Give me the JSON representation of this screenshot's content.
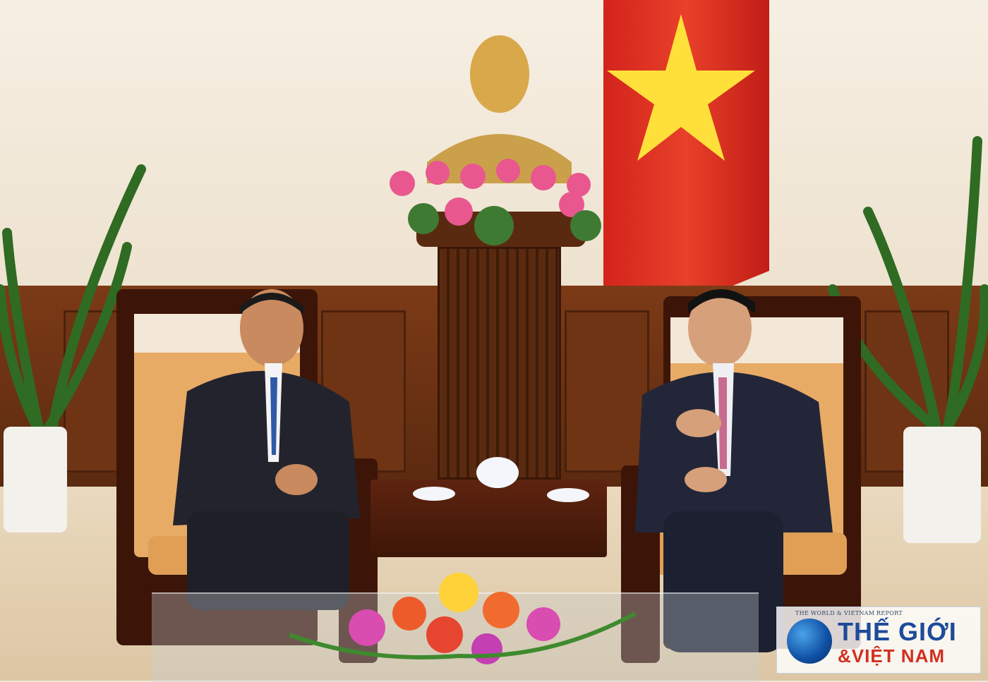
{
  "photo": {
    "description_free": true,
    "watermark": {
      "top_text": "THE WORLD & VIETNAM REPORT",
      "line1": "THẾ GIỚI",
      "line2": "&VIỆT NAM"
    }
  },
  "colors": {
    "flag_red": "#da251d",
    "flag_star": "#ffe03a",
    "watermark_blue": "#1d4b9a",
    "watermark_red": "#d12f1f"
  }
}
